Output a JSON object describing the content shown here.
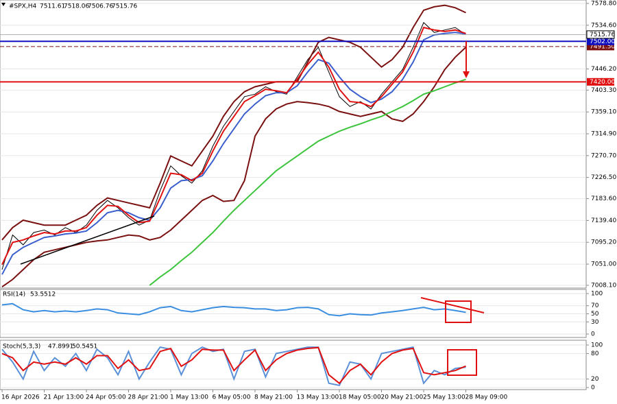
{
  "chart_data": [
    {
      "type": "line",
      "title": "#SPX,H4",
      "ohlc": [
        7511.61,
        7518.06,
        7506.76,
        7515.76
      ],
      "categories": [
        "16 Apr 2026",
        null,
        null,
        null,
        "21 Apr 13:00",
        null,
        null,
        null,
        "24 Apr 05:00",
        null,
        null,
        null,
        "28 Apr 21:00",
        null,
        null,
        null,
        "1 May 13:00",
        null,
        null,
        null,
        "6 May 05:00",
        null,
        null,
        null,
        "8 May 21:00",
        null,
        null,
        null,
        "13 May 13:00",
        null,
        null,
        null,
        "18 May 05:00",
        null,
        null,
        null,
        "20 May 21:00",
        null,
        null,
        null,
        "25 May 13:00",
        null,
        null,
        null,
        "28 May 09:00"
      ],
      "series": [
        {
          "color": "#000000",
          "values": [
            7040,
            7110,
            7090,
            7115,
            7120,
            7110,
            7125,
            7115,
            7130,
            7160,
            7180,
            7165,
            7145,
            7130,
            7140,
            7200,
            7250,
            7230,
            7215,
            7240,
            7290,
            7330,
            7360,
            7390,
            7395,
            7410,
            7400,
            7395,
            7430,
            7465,
            7490,
            7440,
            7390,
            7370,
            7380,
            7365,
            7395,
            7420,
            7445,
            7490,
            7540,
            7520,
            7525,
            7530,
            7515.76
          ]
        },
        {
          "color": "#7a1010",
          "values": [
            7100,
            7125,
            7140,
            7135,
            7130,
            7130,
            7130,
            7140,
            7150,
            7170,
            7185,
            7180,
            7175,
            7170,
            7165,
            7215,
            7270,
            7260,
            7250,
            7280,
            7310,
            7350,
            7380,
            7400,
            7410,
            7415,
            7420,
            7420,
            7420,
            7460,
            7500,
            7510,
            7505,
            7500,
            7490,
            7470,
            7450,
            7465,
            7490,
            7530,
            7565,
            7572,
            7575,
            7570,
            7560
          ]
        },
        {
          "color": "#7a1010",
          "values": [
            7005,
            7020,
            7040,
            7060,
            7075,
            7080,
            7085,
            7090,
            7095,
            7098,
            7100,
            7105,
            7110,
            7108,
            7100,
            7105,
            7120,
            7140,
            7160,
            7180,
            7190,
            7178,
            7180,
            7220,
            7310,
            7345,
            7365,
            7375,
            7380,
            7378,
            7375,
            7370,
            7360,
            7355,
            7350,
            7355,
            7360,
            7345,
            7340,
            7355,
            7380,
            7410,
            7445,
            7470,
            7490
          ]
        },
        {
          "color": "#3a5fcd",
          "values": [
            7030,
            7070,
            7085,
            7095,
            7105,
            7108,
            7112,
            7114,
            7118,
            7135,
            7155,
            7160,
            7155,
            7145,
            7140,
            7165,
            7205,
            7220,
            7222,
            7230,
            7260,
            7295,
            7325,
            7355,
            7375,
            7392,
            7398,
            7398,
            7412,
            7440,
            7465,
            7458,
            7430,
            7405,
            7390,
            7378,
            7385,
            7400,
            7425,
            7460,
            7505,
            7515,
            7518,
            7520,
            7517
          ]
        },
        {
          "color": "#e01010",
          "values": [
            7050,
            7095,
            7100,
            7108,
            7115,
            7112,
            7118,
            7118,
            7125,
            7150,
            7170,
            7168,
            7150,
            7135,
            7138,
            7185,
            7235,
            7232,
            7220,
            7235,
            7280,
            7320,
            7350,
            7380,
            7392,
            7405,
            7402,
            7398,
            7425,
            7455,
            7480,
            7450,
            7405,
            7380,
            7378,
            7370,
            7390,
            7415,
            7440,
            7480,
            7530,
            7525,
            7522,
            7525,
            7518
          ]
        },
        {
          "color": "#3cc43c",
          "values": [
            null,
            null,
            null,
            null,
            null,
            null,
            null,
            null,
            null,
            null,
            null,
            null,
            null,
            null,
            7008,
            7025,
            7040,
            7058,
            7075,
            7095,
            7115,
            7138,
            7160,
            7180,
            7200,
            7220,
            7240,
            7255,
            7270,
            7285,
            7300,
            7310,
            7320,
            7328,
            7335,
            7343,
            7350,
            7360,
            7370,
            7382,
            7395,
            7402,
            7410,
            7418,
            7425
          ]
        }
      ],
      "ylim": [
        7002.5,
        7585.7
      ],
      "yticks": [
        {
          "value": 7578.8,
          "label": "7578.80"
        },
        {
          "value": 7534.6,
          "label": "7534.60"
        },
        {
          "value": 7446.2,
          "label": "7446.20"
        },
        {
          "value": 7403.3,
          "label": "7403.30"
        },
        {
          "value": 7359.1,
          "label": "7359.10"
        },
        {
          "value": 7314.9,
          "label": "7314.90"
        },
        {
          "value": 7270.7,
          "label": "7270.70"
        },
        {
          "value": 7226.5,
          "label": "7226.50"
        },
        {
          "value": 7183.6,
          "label": "7183.60"
        },
        {
          "value": 7139.4,
          "label": "7139.40"
        },
        {
          "value": 7095.2,
          "label": "7095.20"
        },
        {
          "value": 7051,
          "label": "7051.00"
        },
        {
          "value": 7008.1,
          "label": "7008.10"
        }
      ],
      "levels": [
        {
          "value": 7491.5,
          "label": "7491.50",
          "color": "#7a1010",
          "dashed": true
        },
        {
          "value": 7502,
          "label": "7502.00",
          "color": "#1010c0",
          "dashed": false
        },
        {
          "value": 7420,
          "label": "7420.00",
          "color": "#e01010",
          "dashed": false
        }
      ],
      "grid": true
    },
    {
      "type": "line",
      "title": "RSI(14)",
      "series": [
        {
          "color": "#3a8ee0",
          "values": [
            72,
            75,
            60,
            55,
            58,
            55,
            57,
            55,
            58,
            62,
            60,
            52,
            50,
            48,
            55,
            65,
            68,
            58,
            55,
            60,
            65,
            68,
            66,
            65,
            62,
            62,
            58,
            60,
            65,
            66,
            62,
            48,
            45,
            50,
            48,
            47,
            52,
            55,
            58,
            62,
            66,
            60,
            62,
            58,
            53.5512
          ]
        }
      ],
      "ylim": [
        0,
        100
      ],
      "yticks": [
        100,
        70,
        50,
        30,
        0
      ],
      "grid": true
    },
    {
      "type": "line",
      "title": "Stoch(5,3,3)",
      "series": [
        {
          "color": "#5a90d8",
          "values": [
            90,
            60,
            20,
            85,
            40,
            70,
            50,
            80,
            40,
            90,
            70,
            30,
            85,
            20,
            60,
            95,
            90,
            30,
            80,
            95,
            85,
            90,
            20,
            85,
            90,
            25,
            80,
            85,
            90,
            95,
            95,
            10,
            5,
            60,
            55,
            20,
            80,
            85,
            90,
            95,
            10,
            40,
            30,
            45,
            47.8991
          ]
        },
        {
          "color": "#e01010",
          "values": [
            80,
            70,
            40,
            60,
            55,
            60,
            55,
            70,
            55,
            75,
            75,
            45,
            65,
            40,
            45,
            85,
            92,
            50,
            65,
            90,
            88,
            88,
            40,
            65,
            88,
            40,
            65,
            80,
            88,
            92,
            94,
            30,
            10,
            40,
            55,
            30,
            60,
            80,
            88,
            92,
            35,
            30,
            35,
            40,
            50.5451
          ]
        }
      ],
      "ylim": [
        0,
        100
      ],
      "yticks": [
        100,
        80,
        20,
        0
      ],
      "grid": true
    }
  ]
}
